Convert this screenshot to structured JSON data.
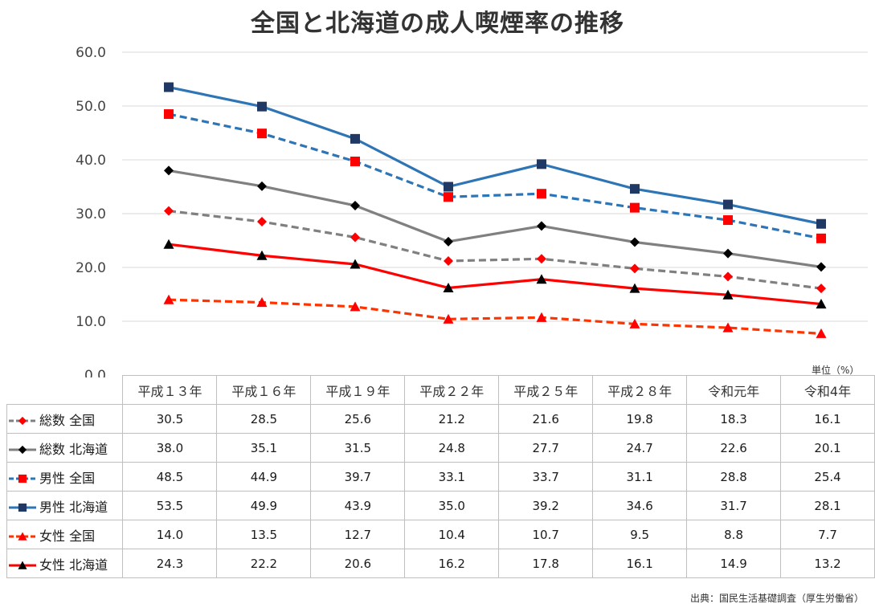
{
  "source": "出典：国民生活基礎調査（厚生労働省）",
  "unit": "単位（%）",
  "chart_data": {
    "type": "line",
    "title": "全国と北海道の成人喫煙率の推移",
    "categories": [
      "平成１３年",
      "平成１６年",
      "平成１９年",
      "平成２２年",
      "平成２５年",
      "平成２８年",
      "令和元年",
      "令和4年"
    ],
    "ylim": [
      0,
      60
    ],
    "yticks": [
      "0.0",
      "10.0",
      "20.0",
      "30.0",
      "40.0",
      "50.0",
      "60.0"
    ],
    "grid": true,
    "legend": "table-left",
    "series": [
      {
        "name": "総数 全国",
        "color": "#808080",
        "dash": true,
        "marker": "diamond",
        "marker_color": "#ff0000",
        "values": [
          30.5,
          28.5,
          25.6,
          21.2,
          21.6,
          19.8,
          18.3,
          16.1
        ]
      },
      {
        "name": "総数 北海道",
        "color": "#808080",
        "dash": false,
        "marker": "diamond",
        "marker_color": "#000000",
        "values": [
          38.0,
          35.1,
          31.5,
          24.8,
          27.7,
          24.7,
          22.6,
          20.1
        ]
      },
      {
        "name": "男性 全国",
        "color": "#2e75b6",
        "dash": true,
        "marker": "square",
        "marker_color": "#ff0000",
        "values": [
          48.5,
          44.9,
          39.7,
          33.1,
          33.7,
          31.1,
          28.8,
          25.4
        ]
      },
      {
        "name": "男性 北海道",
        "color": "#2e75b6",
        "dash": false,
        "marker": "square",
        "marker_color": "#1f3864",
        "values": [
          53.5,
          49.9,
          43.9,
          35.0,
          39.2,
          34.6,
          31.7,
          28.1
        ]
      },
      {
        "name": "女性 全国",
        "color": "#ff3300",
        "dash": true,
        "marker": "triangle",
        "marker_color": "#ff0000",
        "values": [
          14.0,
          13.5,
          12.7,
          10.4,
          10.7,
          9.5,
          8.8,
          7.7
        ]
      },
      {
        "name": "女性 北海道",
        "color": "#ff0000",
        "dash": false,
        "marker": "triangle",
        "marker_color": "#000000",
        "values": [
          24.3,
          22.2,
          20.6,
          16.2,
          17.8,
          16.1,
          14.9,
          13.2
        ]
      }
    ]
  }
}
